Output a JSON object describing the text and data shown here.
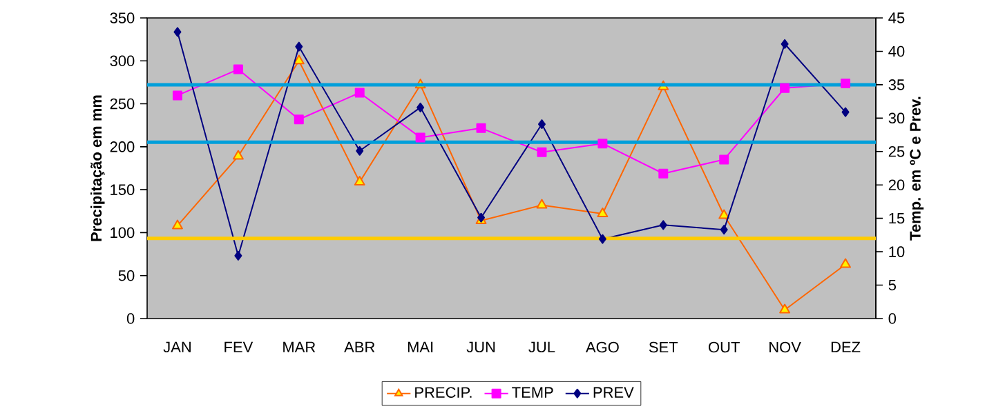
{
  "chart_data": {
    "type": "line",
    "categories": [
      "JAN",
      "FEV",
      "MAR",
      "ABR",
      "MAI",
      "JUN",
      "JUL",
      "AGO",
      "SET",
      "OUT",
      "NOV",
      "DEZ"
    ],
    "ylabel": "Precipitação em mm",
    "y2label": "Temp. em ºC e Prev.",
    "ylim": [
      0,
      350
    ],
    "yticks": [
      0,
      50,
      100,
      150,
      200,
      250,
      300,
      350
    ],
    "y2lim": [
      0,
      45
    ],
    "y2ticks": [
      0,
      5,
      10,
      15,
      20,
      25,
      30,
      35,
      40,
      45
    ],
    "series": [
      {
        "name": "PRECIP.",
        "color": "#ff6600",
        "marker": "triangle",
        "values": [
          108,
          189,
          300,
          159,
          272,
          114,
          132,
          122,
          270,
          120,
          10,
          63
        ]
      },
      {
        "name": "TEMP",
        "color": "#ff00ff",
        "marker": "square",
        "axis": "y2",
        "values": [
          33.4,
          37.3,
          29.8,
          33.8,
          27.1,
          28.5,
          24.9,
          26.2,
          21.7,
          23.8,
          34.5,
          35.2
        ]
      },
      {
        "name": "PREV",
        "color": "#000080",
        "marker": "diamond",
        "axis": "y2",
        "values": [
          42.9,
          9.4,
          40.7,
          25.1,
          31.6,
          15.1,
          29.1,
          11.9,
          14.0,
          13.3,
          41.1,
          30.9
        ]
      }
    ],
    "ref_lines": [
      {
        "axis": "y2",
        "value": 35,
        "color": "#009fda"
      },
      {
        "axis": "y2",
        "value": 26.4,
        "color": "#009fda"
      },
      {
        "axis": "y2",
        "value": 12,
        "color": "#ffcc00"
      }
    ],
    "grid": false,
    "legend": "bottom",
    "line_style": "solid"
  }
}
